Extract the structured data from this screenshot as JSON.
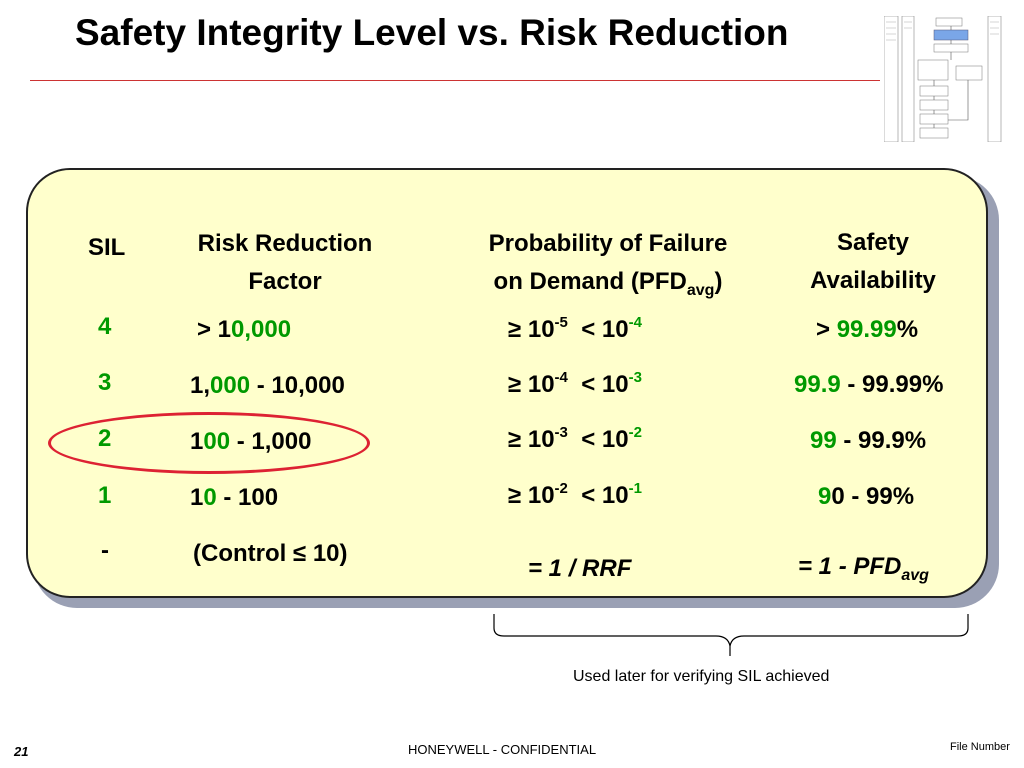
{
  "title": "Safety Integrity Level vs. Risk Reduction",
  "headers": {
    "sil": "SIL",
    "rrf_line1": "Risk Reduction",
    "rrf_line2": "Factor",
    "pfd_line1": "Probability of Failure",
    "pfd_line2_a": "on Demand (PFD",
    "pfd_line2_sub": "avg",
    "pfd_line2_b": ")",
    "sa_line1": "Safety",
    "sa_line2": "Availability"
  },
  "rows": [
    {
      "sil": "4",
      "rrf_a": "> 1",
      "rrf_g": "0,000",
      "rrf_b": "",
      "pfd_ge": "≥ 10",
      "pfd_ge_exp": "-5",
      "pfd_lt": "< 10",
      "pfd_lt_exp": "-4",
      "sa_a": "> ",
      "sa_g": "99.99",
      "sa_b": "%"
    },
    {
      "sil": "3",
      "rrf_a": "1,",
      "rrf_g": "000",
      "rrf_b": " - 10,000",
      "pfd_ge": "≥ 10",
      "pfd_ge_exp": "-4",
      "pfd_lt": "< 10",
      "pfd_lt_exp": "-3",
      "sa_a": "",
      "sa_g": "99.9",
      "sa_b": " - 99.99%"
    },
    {
      "sil": "2",
      "rrf_a": "1",
      "rrf_g": "00",
      "rrf_b": " - 1,000",
      "pfd_ge": "≥ 10",
      "pfd_ge_exp": "-3",
      "pfd_lt": "< 10",
      "pfd_lt_exp": "-2",
      "sa_a": "",
      "sa_g": "99",
      "sa_b": " - 99.9%"
    },
    {
      "sil": "1",
      "rrf_a": "1",
      "rrf_g": "0",
      "rrf_b": " - 100",
      "pfd_ge": "≥ 10",
      "pfd_ge_exp": "-2",
      "pfd_lt": "< 10",
      "pfd_lt_exp": "-1",
      "sa_a": "",
      "sa_g": "9",
      "sa_b": "0 - 99%"
    }
  ],
  "control_row": {
    "sil": "-",
    "rrf": "(Control ≤ 10)"
  },
  "formulas": {
    "pfd": "= 1 / RRF",
    "sa_a": "= 1 - PFD",
    "sa_sub": "avg"
  },
  "brace_note": "Used later for verifying SIL achieved",
  "footer": {
    "page": "21",
    "center": "HONEYWELL - CONFIDENTIAL",
    "right": "File Number"
  },
  "colors": {
    "green": "#009900",
    "red_exp": "#cc0000",
    "panel": "#ffffcc",
    "rule": "#cc3333",
    "ellipse": "#dd2233"
  }
}
